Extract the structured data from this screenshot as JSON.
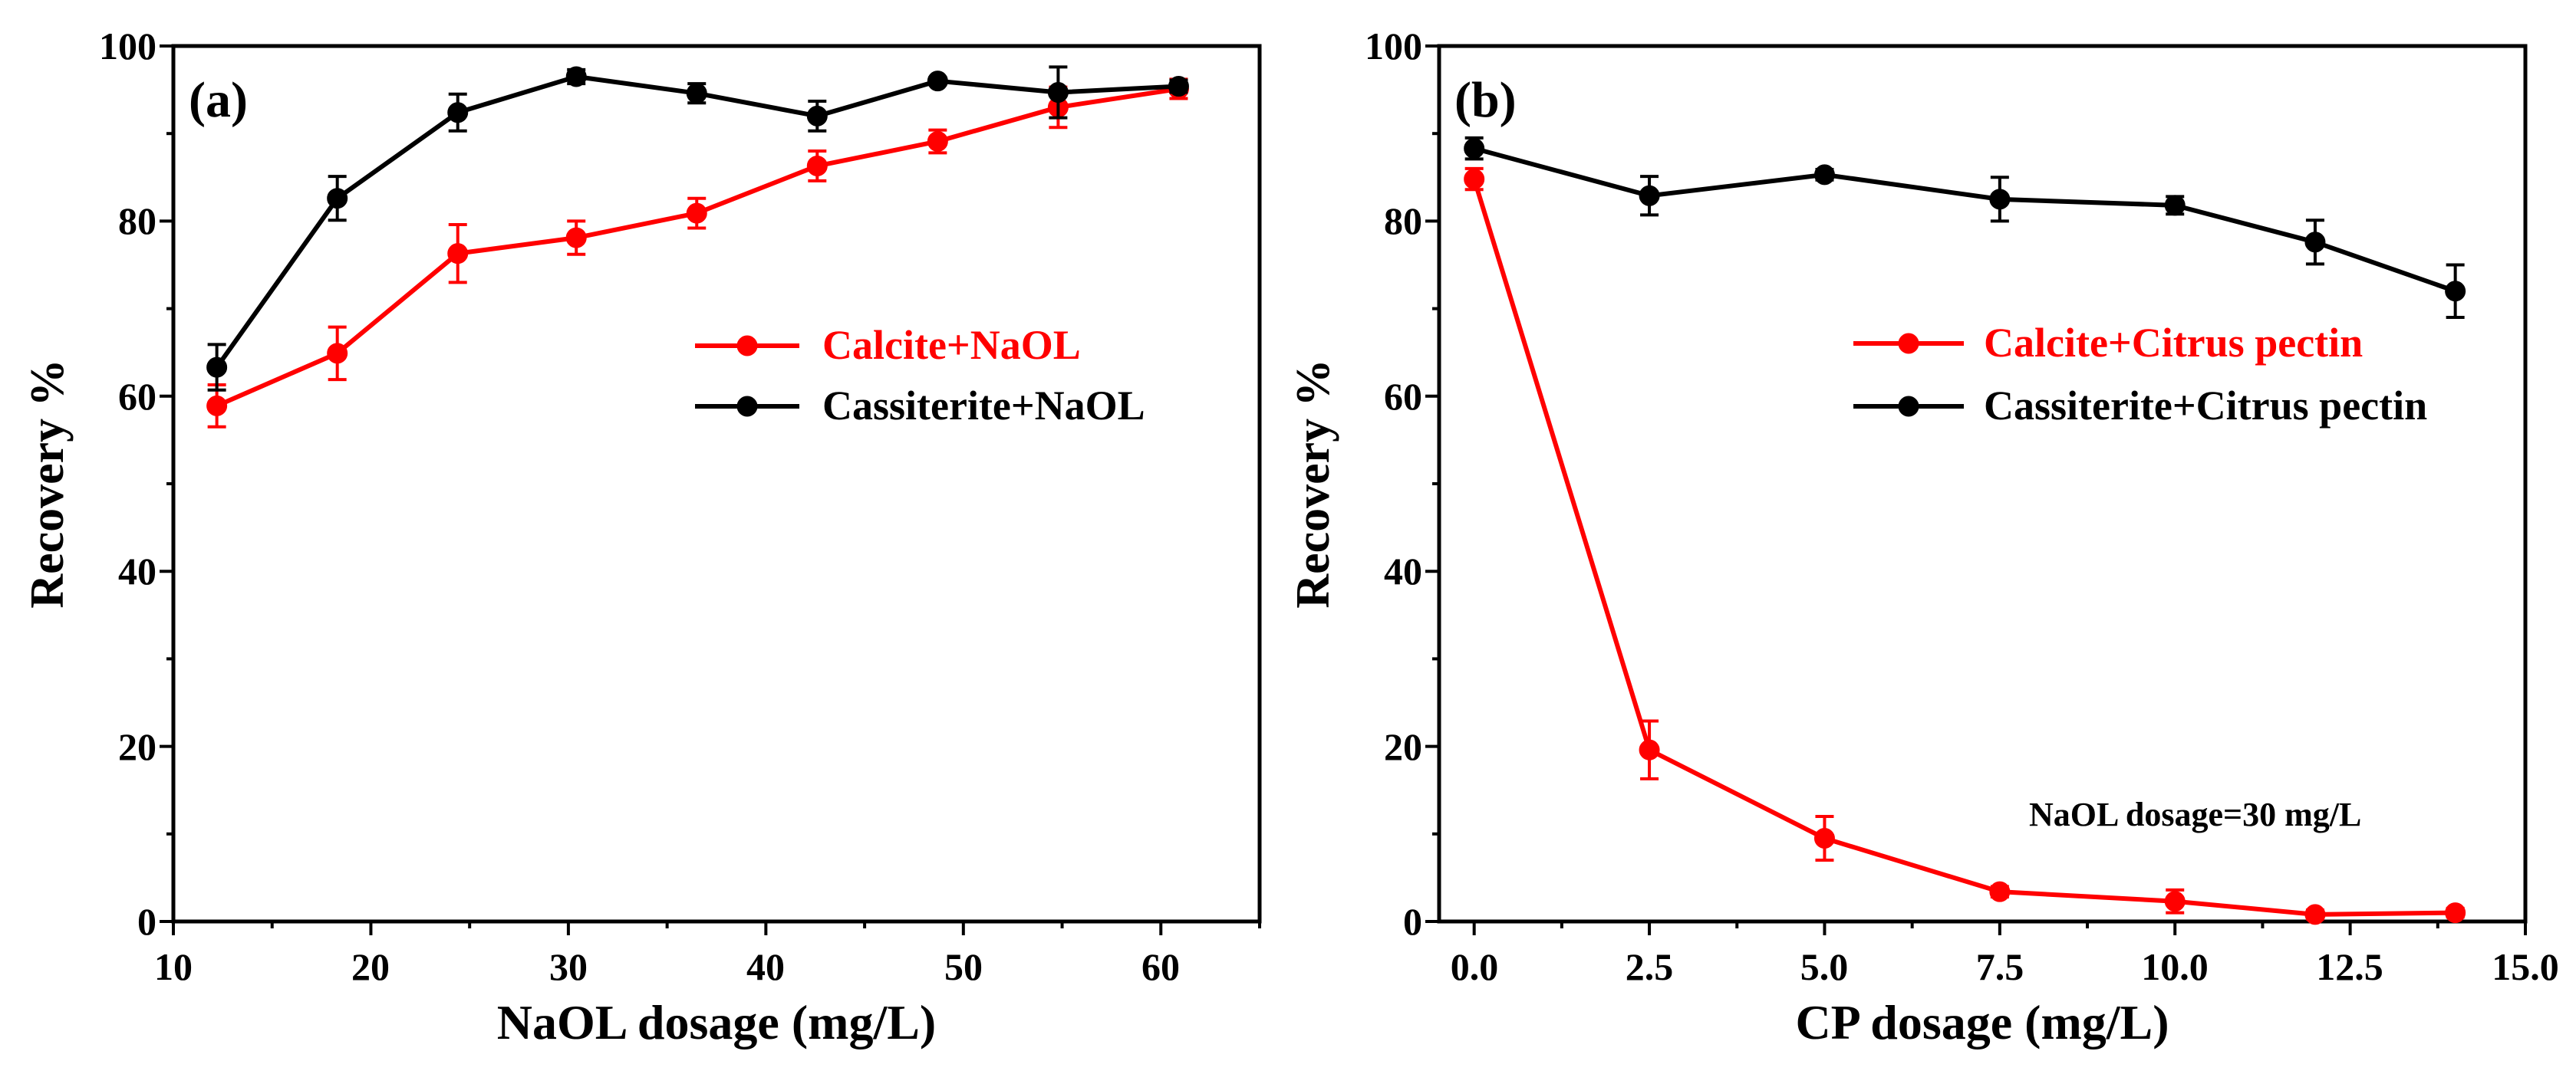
{
  "colors": {
    "calcite": "#ff0000",
    "cassiterite": "#000000",
    "axis": "#000000"
  },
  "panels": [
    {
      "panel_label": "(a)",
      "xlabel": "NaOL dosage (mg/L)",
      "ylabel": "Recovery %",
      "x_tick_labels": [
        "10",
        "20",
        "30",
        "40",
        "50",
        "60"
      ],
      "y_tick_labels": [
        "0",
        "20",
        "40",
        "60",
        "80",
        "100"
      ],
      "legend": [
        "Calcite+NaOL",
        "Cassiterite+NaOL"
      ],
      "annotation": ""
    },
    {
      "panel_label": "(b)",
      "xlabel": "CP dosage (mg/L)",
      "ylabel": "Recovery %",
      "x_tick_labels": [
        "0.0",
        "2.5",
        "5.0",
        "7.5",
        "10.0",
        "12.5",
        "15.0"
      ],
      "y_tick_labels": [
        "0",
        "20",
        "40",
        "60",
        "80",
        "100"
      ],
      "legend": [
        "Calcite+Citrus pectin",
        "Cassiterite+Citrus pectin"
      ],
      "annotation": "NaOL dosage=30 mg/L"
    }
  ],
  "chart_data": [
    {
      "type": "line",
      "xlabel": "NaOL dosage (mg/L)",
      "ylabel": "Recovery %",
      "xlim": [
        10,
        65
      ],
      "ylim": [
        0,
        100
      ],
      "x_ticks": [
        10,
        20,
        30,
        40,
        50,
        60
      ],
      "y_ticks": [
        0,
        20,
        40,
        60,
        80,
        100
      ],
      "x_minor_step": 5,
      "y_minor_step": 10,
      "legend_position": "middle-right",
      "grid": false,
      "series": [
        {
          "name": "Calcite+NaOL",
          "color": "#ff0000",
          "x": [
            12.2,
            18.3,
            24.4,
            30.4,
            36.5,
            42.6,
            48.7,
            54.8,
            60.9
          ],
          "y": [
            58.9,
            64.9,
            76.3,
            78.1,
            80.9,
            86.3,
            89.1,
            93.0,
            95.1
          ],
          "error": [
            2.4,
            3.0,
            3.3,
            1.9,
            1.7,
            1.7,
            1.3,
            2.3,
            1.1
          ]
        },
        {
          "name": "Cassiterite+NaOL",
          "color": "#000000",
          "x": [
            12.2,
            18.3,
            24.4,
            30.4,
            36.5,
            42.6,
            48.7,
            54.8,
            60.9
          ],
          "y": [
            63.3,
            82.6,
            92.4,
            96.5,
            94.6,
            92.0,
            96.0,
            94.7,
            95.4
          ],
          "error": [
            2.6,
            2.5,
            2.1,
            0.8,
            1.1,
            1.7,
            0.4,
            2.9,
            0.7
          ]
        }
      ]
    },
    {
      "type": "line",
      "xlabel": "CP dosage (mg/L)",
      "ylabel": "Recovery %",
      "xlim": [
        -0.5,
        15
      ],
      "ylim": [
        0,
        100
      ],
      "x_ticks": [
        0,
        2.5,
        5,
        7.5,
        10,
        12.5,
        15
      ],
      "y_ticks": [
        0,
        20,
        40,
        60,
        80,
        100
      ],
      "x_minor_step": 1.25,
      "y_minor_step": 10,
      "legend_position": "middle-right",
      "grid": false,
      "annotation": "NaOL dosage=30 mg/L",
      "series": [
        {
          "name": "Calcite+Citrus pectin",
          "color": "#ff0000",
          "x": [
            0,
            2.5,
            5,
            7.5,
            10,
            12,
            14
          ],
          "y": [
            84.8,
            19.6,
            9.5,
            3.4,
            2.3,
            0.8,
            1.0
          ],
          "error": [
            1.2,
            3.3,
            2.5,
            0.6,
            1.3,
            0.5,
            0.5
          ]
        },
        {
          "name": "Cassiterite+Citrus pectin",
          "color": "#000000",
          "x": [
            0,
            2.5,
            5,
            7.5,
            10,
            12,
            14
          ],
          "y": [
            88.3,
            82.9,
            85.3,
            82.5,
            81.8,
            77.6,
            72.0
          ],
          "error": [
            1.2,
            2.2,
            0.6,
            2.5,
            1.0,
            2.5,
            3.0
          ]
        }
      ]
    }
  ]
}
